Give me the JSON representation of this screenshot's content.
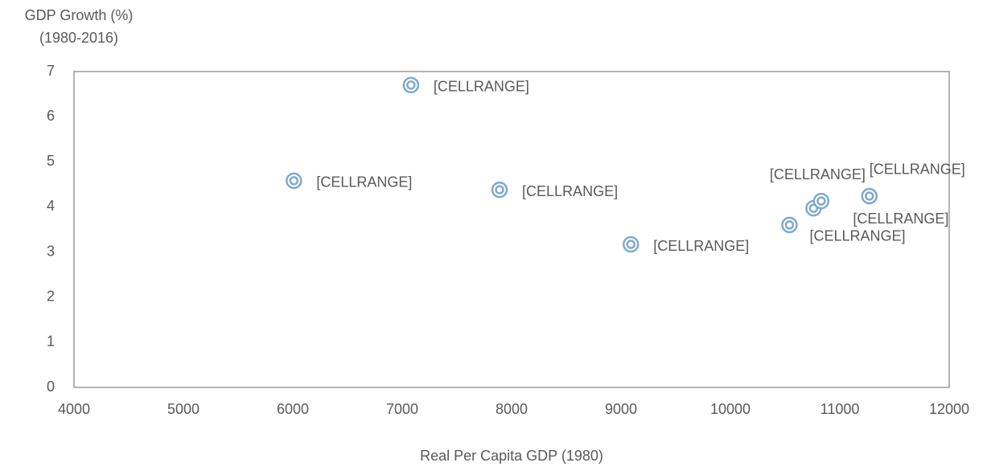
{
  "chart_data": {
    "type": "scatter",
    "ylabel": [
      "GDP Growth (%)",
      "(1980-2016)"
    ],
    "xlabel": "Real Per Capita GDP (1980)",
    "x": [
      7080,
      6010,
      7890,
      9090,
      10540,
      10760,
      10830,
      11270
    ],
    "values": [
      6.7,
      4.58,
      4.38,
      3.17,
      3.6,
      3.97,
      4.13,
      4.24
    ],
    "point_labels": [
      "[CELLRANGE]",
      "[CELLRANGE]",
      "[CELLRANGE]",
      "[CELLRANGE]",
      "[CELLRANGE]",
      "[CELLRANGE]",
      "[CELLRANGE]",
      "[CELLRANGE]"
    ],
    "color": "#7ea9cc",
    "xlim": [
      4000,
      12000
    ],
    "xticks": [
      4000,
      5000,
      6000,
      7000,
      8000,
      9000,
      10000,
      11000,
      12000
    ],
    "ylim": [
      0,
      7
    ],
    "yticks": [
      0,
      1,
      2,
      3,
      4,
      5,
      6,
      7
    ],
    "grid": false
  }
}
